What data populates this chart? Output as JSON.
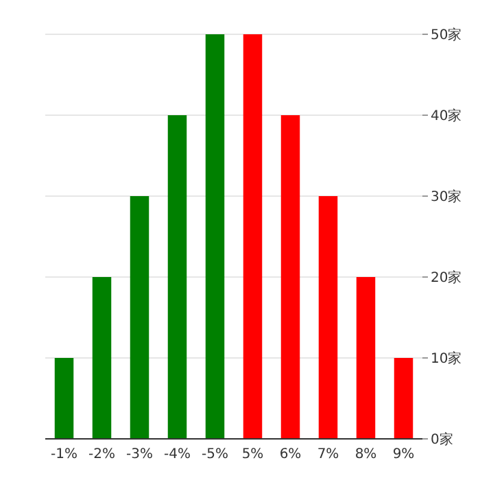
{
  "chart_data": {
    "type": "bar",
    "categories": [
      "-1%",
      "-2%",
      "-3%",
      "-4%",
      "-5%",
      "5%",
      "6%",
      "7%",
      "8%",
      "9%"
    ],
    "values": [
      10,
      20,
      30,
      40,
      50,
      50,
      40,
      30,
      20,
      10
    ],
    "colors": [
      "#008000",
      "#008000",
      "#008000",
      "#008000",
      "#008000",
      "#ff0000",
      "#ff0000",
      "#ff0000",
      "#ff0000",
      "#ff0000"
    ],
    "ylim": [
      0,
      50
    ],
    "yticks": [
      {
        "value": 0,
        "label": "0家"
      },
      {
        "value": 10,
        "label": "10家"
      },
      {
        "value": 20,
        "label": "20家"
      },
      {
        "value": 30,
        "label": "30家"
      },
      {
        "value": 40,
        "label": "40家"
      },
      {
        "value": 50,
        "label": "50家"
      }
    ],
    "grid": "y"
  }
}
